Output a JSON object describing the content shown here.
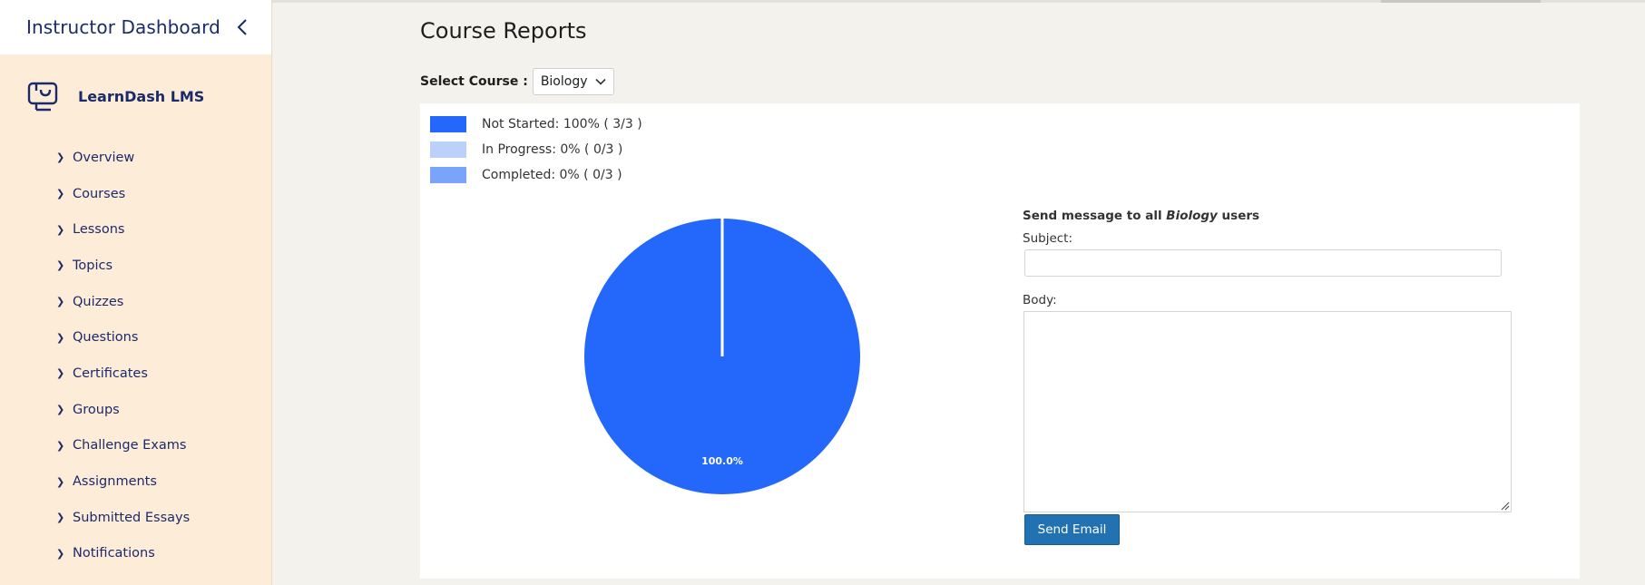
{
  "sidebar": {
    "title": "Instructor Dashboard",
    "brand": "LearnDash LMS",
    "items": [
      {
        "label": "Overview"
      },
      {
        "label": "Courses"
      },
      {
        "label": "Lessons"
      },
      {
        "label": "Topics"
      },
      {
        "label": "Quizzes"
      },
      {
        "label": "Questions"
      },
      {
        "label": "Certificates"
      },
      {
        "label": "Groups"
      },
      {
        "label": "Challenge Exams"
      },
      {
        "label": "Assignments"
      },
      {
        "label": "Submitted Essays"
      },
      {
        "label": "Notifications"
      }
    ]
  },
  "main": {
    "title": "Course Reports",
    "course_select": {
      "label": "Select Course :",
      "value": "Biology"
    }
  },
  "colors": {
    "not_started": "#2468fb",
    "in_progress": "#bcd0fc",
    "completed": "#7aa3fb",
    "button": "#2271b1"
  },
  "chart_data": {
    "type": "pie",
    "categories": [
      "Not Started",
      "In Progress",
      "Completed"
    ],
    "values": [
      3,
      0,
      0
    ],
    "legend": [
      "Not Started: 100% ( 3/3 )",
      "In Progress: 0% ( 0/3 )",
      "Completed: 0% ( 0/3 )"
    ],
    "slice_label": "100.0%",
    "legend_position": "top-left"
  },
  "message_form": {
    "heading_prefix": "Send message to all",
    "course": "Biology",
    "heading_suffix": "users",
    "subject_label": "Subject:",
    "subject_value": "",
    "body_label": "Body:",
    "body_value": "",
    "send_label": "Send Email"
  }
}
